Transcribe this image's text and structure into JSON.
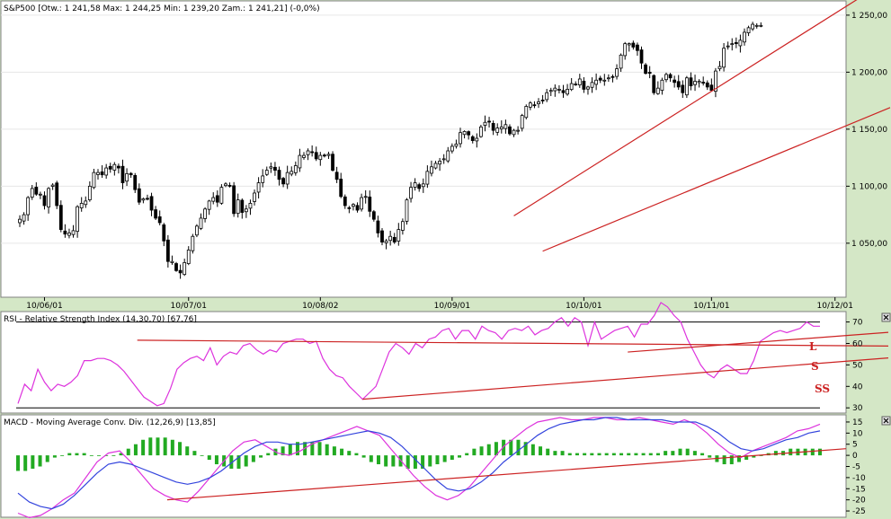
{
  "colors": {
    "background": "#d4e7c6",
    "plot": "#ffffff",
    "candle_up": "#ffffff",
    "candle_down": "#000000",
    "trend": "#cc2222",
    "rsi": "#dd33dd",
    "macd": "#dd33dd",
    "signal": "#3344dd",
    "histogram": "#22aa22"
  },
  "chart_data": [
    {
      "type": "candlestick",
      "title": "S&P500 [Otw.: 1 241,58  Max: 1 244,25  Min: 1 239,20  Zam.: 1 241,21] (-0,0%)",
      "x_tick_labels": [
        "10/06/01",
        "10/07/01",
        "10/08/02",
        "10/09/01",
        "10/10/01",
        "10/11/01",
        "10/12/01"
      ],
      "y_tick_labels": [
        "1 250,00",
        "1 200,00",
        "1 150,00",
        "1 100,00",
        "1 050,00"
      ],
      "y_ticks": [
        1250,
        1200,
        1150,
        1100,
        1050
      ],
      "ylim": [
        1005,
        1257
      ],
      "n_sessions": 196,
      "x_tick_sessions": [
        6,
        41,
        73,
        105,
        137,
        168,
        198
      ],
      "close": [
        1071,
        1075,
        1090,
        1098,
        1093,
        1093,
        1083,
        1098,
        1101,
        1083,
        1062,
        1058,
        1059,
        1061,
        1082,
        1085,
        1087,
        1100,
        1112,
        1112,
        1110,
        1116,
        1115,
        1119,
        1116,
        1103,
        1111,
        1110,
        1097,
        1086,
        1089,
        1089,
        1079,
        1072,
        1068,
        1052,
        1034,
        1034,
        1026,
        1024,
        1033,
        1044,
        1056,
        1065,
        1072,
        1080,
        1087,
        1090,
        1086,
        1099,
        1102,
        1100,
        1076,
        1088,
        1077,
        1080,
        1085,
        1094,
        1103,
        1109,
        1114,
        1117,
        1114,
        1106,
        1102,
        1112,
        1113,
        1118,
        1127,
        1127,
        1131,
        1130,
        1124,
        1127,
        1127,
        1128,
        1114,
        1106,
        1091,
        1083,
        1081,
        1084,
        1079,
        1090,
        1091,
        1078,
        1071,
        1059,
        1051,
        1052,
        1056,
        1051,
        1062,
        1069,
        1088,
        1099,
        1103,
        1098,
        1102,
        1113,
        1117,
        1120,
        1122,
        1124,
        1131,
        1135,
        1137,
        1147,
        1148,
        1145,
        1140,
        1142,
        1152,
        1156,
        1157,
        1149,
        1151,
        1152,
        1154,
        1146,
        1149,
        1149,
        1162,
        1170,
        1173,
        1171,
        1174,
        1175,
        1182,
        1184,
        1186,
        1185,
        1182,
        1185,
        1190,
        1189,
        1194,
        1185,
        1187,
        1191,
        1193,
        1193,
        1193,
        1195,
        1196,
        1203,
        1215,
        1225,
        1225,
        1222,
        1219,
        1208,
        1199,
        1199,
        1182,
        1186,
        1193,
        1198,
        1195,
        1191,
        1187,
        1182,
        1195,
        1188,
        1192,
        1192,
        1191,
        1187,
        1184,
        1201,
        1205,
        1221,
        1223,
        1225,
        1225,
        1228,
        1235,
        1239,
        1242,
        1241,
        1241
      ],
      "trend_lines": [
        {
          "from": [
            120,
            1074
          ],
          "to": [
            196,
            1247
          ]
        },
        {
          "from": [
            127,
            1043
          ],
          "to": [
            196,
            1146
          ]
        }
      ]
    },
    {
      "type": "line",
      "title": "RSI - Relative Strength Index (14,30,70) [67,76]",
      "y_tick_labels": [
        "70",
        "60",
        "50",
        "40",
        "30"
      ],
      "y_ticks": [
        70,
        60,
        50,
        40,
        30
      ],
      "ylim": [
        28,
        74
      ],
      "values": [
        32,
        41,
        38,
        48,
        42,
        38,
        41,
        40,
        42,
        45,
        52,
        52,
        53,
        53,
        52,
        50,
        47,
        43,
        39,
        35,
        33,
        31,
        32,
        39,
        48,
        51,
        53,
        54,
        52,
        58,
        50,
        54,
        56,
        55,
        59,
        60,
        57,
        55,
        57,
        56,
        60,
        61,
        62,
        62,
        60,
        61,
        53,
        48,
        45,
        44,
        40,
        37,
        34,
        37,
        40,
        48,
        56,
        60,
        58,
        55,
        60,
        58,
        62,
        63,
        66,
        67,
        62,
        66,
        66,
        62,
        68,
        66,
        65,
        62,
        66,
        67,
        66,
        68,
        64,
        66,
        67,
        70,
        72,
        68,
        72,
        70,
        59,
        70,
        62,
        64,
        66,
        67,
        68,
        63,
        69,
        69,
        73,
        79,
        77,
        73,
        70,
        62,
        56,
        50,
        46,
        44,
        48,
        50,
        48,
        46,
        46,
        52,
        61,
        63,
        65,
        66,
        65,
        66,
        67,
        70,
        68,
        68
      ],
      "reference_lines": [
        70,
        30
      ],
      "annotations": [
        "L",
        "S",
        "SS"
      ],
      "trend_lines": [
        {
          "from": [
            18,
            61.5
          ],
          "to": [
            122,
            59
          ]
        },
        {
          "from": [
            92,
            56
          ],
          "to": [
            122,
            63
          ]
        },
        {
          "from": [
            52,
            34
          ],
          "to": [
            122,
            51
          ]
        }
      ]
    },
    {
      "type": "line",
      "title": "MACD - Moving Average Conv. Div. (12,26,9) [13,85]",
      "y_tick_labels": [
        "15",
        "10",
        "5",
        "0",
        "-5",
        "-10",
        "-15",
        "-20",
        "-25"
      ],
      "y_ticks": [
        15,
        10,
        5,
        0,
        -5,
        -10,
        -15,
        -20,
        -25
      ],
      "ylim": [
        -27,
        17
      ],
      "series": [
        {
          "values": [
            -26,
            -28,
            -27,
            -24,
            -20,
            -17,
            -10,
            -3,
            1,
            2,
            -3,
            -9,
            -15,
            -18,
            -20,
            -21,
            -16,
            -10,
            -4,
            2,
            6,
            7,
            4,
            1,
            0,
            2,
            5,
            7,
            9,
            11,
            13,
            11,
            9,
            3,
            -3,
            -9,
            -14,
            -18,
            -20,
            -18,
            -14,
            -8,
            -2,
            4,
            8,
            12,
            15,
            16,
            17,
            16,
            16,
            17,
            17,
            16,
            16,
            17,
            16,
            15,
            14,
            16,
            14,
            10,
            5,
            1,
            -1,
            2,
            4,
            6,
            8,
            11,
            12,
            14
          ]
        },
        {
          "values": [
            -17,
            -21,
            -23,
            -24,
            -22,
            -18,
            -13,
            -8,
            -4,
            -3,
            -4,
            -6,
            -8,
            -10,
            -12,
            -13,
            -12,
            -10,
            -7,
            -3,
            1,
            4,
            6,
            6,
            5,
            5,
            6,
            7,
            8,
            9,
            10,
            11,
            10,
            8,
            4,
            -1,
            -6,
            -11,
            -15,
            -16,
            -15,
            -12,
            -8,
            -3,
            1,
            5,
            9,
            12,
            14,
            15,
            16,
            16,
            17,
            17,
            16,
            16,
            16,
            16,
            15,
            15,
            15,
            13,
            10,
            6,
            3,
            2,
            3,
            5,
            7,
            8,
            10,
            11
          ]
        }
      ],
      "histogram": [
        -7,
        -7,
        -6,
        -5,
        -3,
        -1,
        0,
        1,
        1,
        1,
        0,
        0,
        0,
        0,
        1,
        3,
        5,
        7,
        8,
        8,
        8,
        7,
        6,
        4,
        2,
        0,
        -2,
        -4,
        -5,
        -6,
        -6,
        -5,
        -3,
        -1,
        1,
        3,
        4,
        5,
        6,
        6,
        6,
        6,
        5,
        4,
        3,
        2,
        1,
        -1,
        -3,
        -4,
        -5,
        -5,
        -5,
        -6,
        -6,
        -6,
        -5,
        -4,
        -3,
        -2,
        -1,
        1,
        3,
        4,
        5,
        6,
        7,
        7,
        7,
        6,
        5,
        4,
        3,
        2,
        2,
        1,
        1,
        1,
        1,
        1,
        1,
        1,
        1,
        1,
        1,
        1,
        1,
        1,
        2,
        2,
        3,
        3,
        2,
        1,
        -1,
        -3,
        -4,
        -4,
        -3,
        -2,
        -1,
        0,
        1,
        2,
        2,
        3,
        3,
        3,
        3,
        3
      ],
      "trend_lines": [
        {
          "from": [
            8,
            -20
          ],
          "to": [
            100,
            3
          ]
        }
      ]
    }
  ]
}
